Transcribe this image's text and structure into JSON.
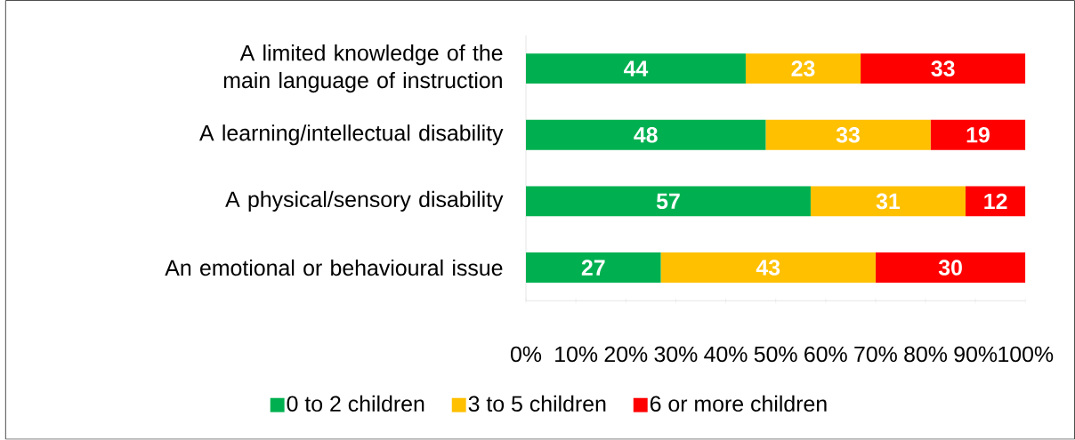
{
  "chart_data": {
    "type": "bar",
    "orientation": "horizontal",
    "stacked": true,
    "data_labels": true,
    "legend": "bottom",
    "grid": false,
    "categories": [
      "A limited knowledge of the main language of instruction",
      "A learning/intellectual disability",
      "A physical/sensory disability",
      "An emotional or behavioural issue"
    ],
    "series": [
      {
        "name": "0 to 2 children",
        "color": "#00b050",
        "values": [
          44,
          48,
          57,
          27
        ]
      },
      {
        "name": "3 to 5 children",
        "color": "#ffc000",
        "values": [
          23,
          33,
          31,
          43
        ]
      },
      {
        "name": "6 or more children",
        "color": "#ff0000",
        "values": [
          33,
          19,
          12,
          30
        ]
      }
    ],
    "xlim": [
      0,
      100
    ],
    "xticks": [
      {
        "value": 0,
        "label": "0%"
      },
      {
        "value": 10,
        "label": "10%"
      },
      {
        "value": 20,
        "label": "20%"
      },
      {
        "value": 30,
        "label": "30%"
      },
      {
        "value": 40,
        "label": "40%"
      },
      {
        "value": 50,
        "label": "50%"
      },
      {
        "value": 60,
        "label": "60%"
      },
      {
        "value": 70,
        "label": "70%"
      },
      {
        "value": 80,
        "label": "80%"
      },
      {
        "value": 90,
        "label": "90%"
      },
      {
        "value": 100,
        "label": "100%"
      }
    ]
  }
}
